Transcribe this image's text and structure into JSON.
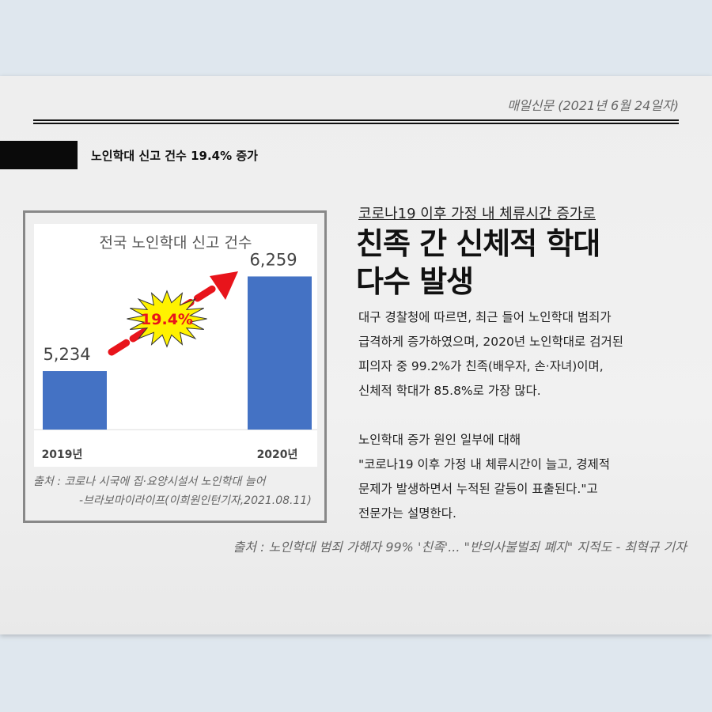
{
  "paper": {
    "date": "매일신문 (2021년 6월 24일자)",
    "section": "노인학대 신고 건수 19.4% 증가"
  },
  "chart_data": {
    "type": "bar",
    "title": "전국 노인학대 신고 건수",
    "categories": [
      "2019년",
      "2020년"
    ],
    "values": [
      5234,
      6259
    ],
    "value_labels": [
      "5,234",
      "6,259"
    ],
    "ylim": [
      4600,
      6400
    ],
    "annotation": "19.4%",
    "bar_color": "#4472c4",
    "arrow_color": "#e8141b"
  },
  "chart_source": {
    "line1": "출처 : 코로나 시국에 집·요양시설서 노인학대 늘어",
    "line2": "-브라보마이라이프(이희원인턴기자,2021.08.11)"
  },
  "article": {
    "subhead": "코로나19 이후 가정 내 체류시간 증가로",
    "headline_1": "친족 간 신체적 학대",
    "headline_2": "다수 발생",
    "paragraph1": [
      "대구 경찰청에 따르면, 최근 들어 노인학대 범죄가",
      "급격하게 증가하였으며, 2020년 노인학대로 검거된",
      "피의자 중 99.2%가 친족(배우자, 손·자녀)이며,",
      "신체적 학대가 85.8%로 가장 많다."
    ],
    "paragraph2": [
      "노인학대 증가 원인 일부에 대해",
      "\"코로나19 이후 가정 내 체류시간이 늘고, 경제적",
      "문제가 발생하면서 누적된 갈등이 표출된다.\"고",
      "전문가는 설명한다."
    ]
  },
  "citation": "출처 : 노인학대 범죄 가해자 99% '친족'... \"반의사불벌죄 폐지\" 지적도 - 최혁규 기자"
}
